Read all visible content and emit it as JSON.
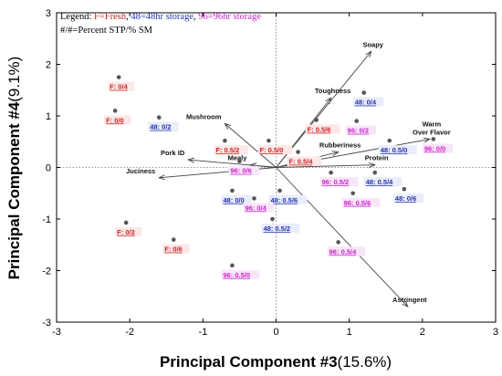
{
  "chart_data": {
    "type": "scatter",
    "subtype": "biplot",
    "xlabel": "Principal Component #3",
    "xlabel_pct": "(15.6%)",
    "ylabel": "Principal Component #4",
    "ylabel_pct": "(9.1%)",
    "xlim": [
      -3,
      3
    ],
    "ylim": [
      -3,
      3
    ],
    "xticks": [
      "-3",
      "-2",
      "-1",
      "0",
      "1",
      "2",
      "3"
    ],
    "yticks": [
      "-3",
      "-2",
      "-1",
      "0",
      "1",
      "2",
      "3"
    ],
    "reference_lines": "dotted lines at x=0 and y=0",
    "legend": {
      "prefix": "Legend: ",
      "entries": [
        {
          "text": "F=Fresh",
          "color": "#cc2222"
        },
        {
          "text": "48=48hr storage",
          "color": "#2233aa"
        },
        {
          "text": "96=96hr storage",
          "color": "#cc22cc"
        }
      ],
      "separator": ", ",
      "line2": "#/#=Percent STP/% SM"
    },
    "colors": {
      "fresh": "#cc2222",
      "h48": "#2233aa",
      "h96": "#cc22cc",
      "vector": "#444444",
      "point": "#555555"
    },
    "vectors": [
      {
        "name": "Soapy",
        "x": 1.3,
        "y": 2.25
      },
      {
        "name": "Toughness",
        "x": 0.75,
        "y": 1.35
      },
      {
        "name": "Warm Over Flavor",
        "lines": [
          "Warm",
          "Over Flavor"
        ],
        "x": 2.1,
        "y": 0.55
      },
      {
        "name": "Rubberiness",
        "x": 0.85,
        "y": 0.3
      },
      {
        "name": "Protein",
        "x": 1.35,
        "y": 0.05
      },
      {
        "name": "Astringent",
        "x": 1.8,
        "y": -2.7
      },
      {
        "name": "Mushroom",
        "x": -0.7,
        "y": 0.85
      },
      {
        "name": "Pork ID",
        "x": -1.2,
        "y": 0.15
      },
      {
        "name": "Mealy",
        "x": -0.35,
        "y": 0.05
      },
      {
        "name": "Juciness",
        "x": -1.6,
        "y": -0.2
      }
    ],
    "points": [
      {
        "label": "F: 0/4",
        "group": "fresh",
        "x": -2.15,
        "y": 1.75
      },
      {
        "label": "F: 0/0",
        "group": "fresh",
        "x": -2.2,
        "y": 1.1
      },
      {
        "label": "F: 0.5/2",
        "group": "fresh",
        "x": -0.7,
        "y": 0.52
      },
      {
        "label": "F: 0.5/0",
        "group": "fresh",
        "x": -0.1,
        "y": 0.52
      },
      {
        "label": "F: 0.5/6",
        "group": "fresh",
        "x": 0.55,
        "y": 0.92
      },
      {
        "label": "F: 0.5/4",
        "group": "fresh",
        "x": 0.3,
        "y": 0.3
      },
      {
        "label": "F: 0/2",
        "group": "fresh",
        "x": -2.05,
        "y": -1.07
      },
      {
        "label": "F: 0/6",
        "group": "fresh",
        "x": -1.4,
        "y": -1.4
      },
      {
        "label": "48: 0/2",
        "group": "h48",
        "x": -1.6,
        "y": 0.97
      },
      {
        "label": "48: 0/4",
        "group": "h48",
        "x": 1.2,
        "y": 1.45
      },
      {
        "label": "48: 0.5/0",
        "group": "h48",
        "x": 1.55,
        "y": 0.52
      },
      {
        "label": "48: 0.5/4",
        "group": "h48",
        "x": 1.35,
        "y": -0.1
      },
      {
        "label": "48: 0/6",
        "group": "h48",
        "x": 1.75,
        "y": -0.42
      },
      {
        "label": "48: 0/0",
        "group": "h48",
        "x": -0.6,
        "y": -0.45
      },
      {
        "label": "48: 0.5/6",
        "group": "h48",
        "x": 0.05,
        "y": -0.45
      },
      {
        "label": "48: 0.5/2",
        "group": "h48",
        "x": -0.05,
        "y": -1.0
      },
      {
        "label": "96: 0/2",
        "group": "h96",
        "x": 1.1,
        "y": 0.9
      },
      {
        "label": "96: 0/0",
        "group": "h96",
        "x": 2.15,
        "y": 0.55
      },
      {
        "label": "96: 0/6",
        "group": "h96",
        "x": -0.5,
        "y": 0.12
      },
      {
        "label": "96: 0.5/2",
        "group": "h96",
        "x": 0.75,
        "y": -0.1
      },
      {
        "label": "96: 0.5/6",
        "group": "h96",
        "x": 1.05,
        "y": -0.5
      },
      {
        "label": "96: 0/4",
        "group": "h96",
        "x": -0.3,
        "y": -0.6
      },
      {
        "label": "96: 0.5/4",
        "group": "h96",
        "x": 0.85,
        "y": -1.45
      },
      {
        "label": "96: 0.5/0",
        "group": "h96",
        "x": -0.6,
        "y": -1.9
      }
    ]
  }
}
